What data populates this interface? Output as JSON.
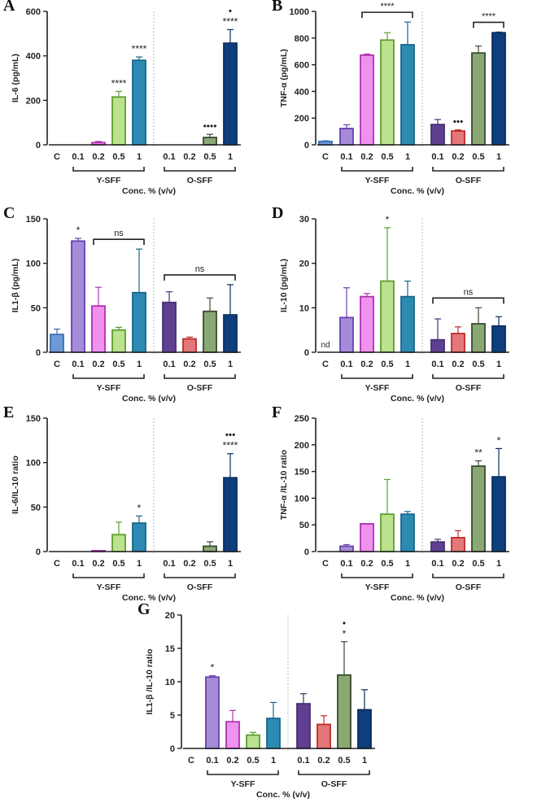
{
  "colors": {
    "C": {
      "fill": "#6e9ad6",
      "stroke": "#3d6db5"
    },
    "Y0.1": {
      "fill": "#a58cd8",
      "stroke": "#6a3fb0"
    },
    "Y0.2": {
      "fill": "#ee92ee",
      "stroke": "#b030b0"
    },
    "Y0.5": {
      "fill": "#bce28e",
      "stroke": "#5e9e2e"
    },
    "Y1": {
      "fill": "#2b8bb2",
      "stroke": "#1b6688"
    },
    "O0.1": {
      "fill": "#5f3f90",
      "stroke": "#4a2f75"
    },
    "O0.2": {
      "fill": "#e47878",
      "stroke": "#c02a2a"
    },
    "O0.5": {
      "fill": "#8aa874",
      "stroke": "#3a4a2e"
    },
    "O1": {
      "fill": "#0e3e7c",
      "stroke": "#0a2e5e"
    }
  },
  "chart_data": [
    {
      "panel": "A",
      "type": "bar",
      "ylabel": "IL-6 (pg/mL)",
      "xlabel": "Conc. % (v/v)",
      "ylim": [
        0,
        600
      ],
      "yticks": [
        0,
        200,
        400,
        600
      ],
      "categories": [
        "C",
        "0.1",
        "0.2",
        "0.5",
        "1",
        "0.1",
        "0.2",
        "0.5",
        "1"
      ],
      "groups": [
        "Y-SFF",
        "O-SFF"
      ],
      "values": [
        0,
        0,
        10,
        215,
        380,
        0,
        0,
        33,
        457
      ],
      "errors": [
        0,
        0,
        5,
        25,
        15,
        0,
        0,
        14,
        61
      ],
      "annotations": [
        [
          "",
          "",
          "",
          "****",
          "****",
          "",
          "",
          "••••",
          "****"
        ],
        [
          "",
          "",
          "",
          "",
          "",
          "",
          "",
          "",
          "•"
        ]
      ],
      "brackets": []
    },
    {
      "panel": "B",
      "type": "bar",
      "ylabel": "TNF-α (pg/mL)",
      "xlabel": "Conc. % (v/v)",
      "ylim": [
        0,
        1000
      ],
      "yticks": [
        0,
        200,
        400,
        600,
        800,
        1000
      ],
      "categories": [
        "C",
        "0.1",
        "0.2",
        "0.5",
        "1",
        "0.1",
        "0.2",
        "0.5",
        "1"
      ],
      "groups": [
        "Y-SFF",
        "O-SFF"
      ],
      "values": [
        25,
        122,
        672,
        785,
        750,
        152,
        103,
        688,
        840
      ],
      "errors": [
        5,
        28,
        8,
        55,
        170,
        38,
        9,
        52,
        5
      ],
      "annotations": [
        [
          "",
          "",
          "",
          "",
          "",
          "",
          "•••",
          "",
          ""
        ]
      ],
      "brackets": [
        {
          "from": 2,
          "to": 4,
          "label": "****"
        },
        {
          "from": 7,
          "to": 8,
          "label": "****"
        }
      ]
    },
    {
      "panel": "C",
      "type": "bar",
      "ylabel": "IL1-β (pg/mL)",
      "xlabel": "Conc. % (v/v)",
      "ylim": [
        0,
        150
      ],
      "yticks": [
        0,
        50,
        100,
        150
      ],
      "categories": [
        "C",
        "0.1",
        "0.2",
        "0.5",
        "1",
        "0.1",
        "0.2",
        "0.5",
        "1"
      ],
      "groups": [
        "Y-SFF",
        "O-SFF"
      ],
      "values": [
        20,
        125,
        52,
        25,
        67,
        56,
        15,
        46,
        42
      ],
      "errors": [
        6,
        3,
        21,
        3,
        49,
        12,
        2,
        15,
        34
      ],
      "annotations": [
        [
          "",
          "*",
          "",
          "",
          "",
          "",
          "",
          "",
          ""
        ]
      ],
      "brackets": [
        {
          "from": 2,
          "to": 4,
          "label": "ns"
        },
        {
          "from": 5,
          "to": 8,
          "label": "ns"
        }
      ]
    },
    {
      "panel": "D",
      "type": "bar",
      "ylabel": "IL-10 (pg/mL)",
      "xlabel": "Conc. % (v/v)",
      "ylim": [
        0,
        30
      ],
      "yticks": [
        0,
        10,
        20,
        30
      ],
      "categories": [
        "C",
        "0.1",
        "0.2",
        "0.5",
        "1",
        "0.1",
        "0.2",
        "0.5",
        "1"
      ],
      "groups": [
        "Y-SFF",
        "O-SFF"
      ],
      "values": [
        0,
        7.8,
        12.5,
        16,
        12.5,
        2.8,
        4.2,
        6.4,
        5.9
      ],
      "errors": [
        0,
        6.7,
        0.7,
        12,
        3.5,
        4.7,
        1.5,
        3.6,
        2.1
      ],
      "annotations": [
        [
          "nd",
          "",
          "",
          "*",
          "",
          "",
          "",
          "",
          ""
        ]
      ],
      "brackets": [
        {
          "from": 5,
          "to": 8,
          "label": "ns"
        }
      ]
    },
    {
      "panel": "E",
      "type": "bar",
      "ylabel": "IL-6/IL-10 ratio",
      "xlabel": "Conc. % (v/v)",
      "ylim": [
        0,
        150
      ],
      "yticks": [
        0,
        50,
        100,
        150
      ],
      "categories": [
        "C",
        "0.1",
        "0.2",
        "0.5",
        "1",
        "0.1",
        "0.2",
        "0.5",
        "1"
      ],
      "groups": [
        "Y-SFF",
        "O-SFF"
      ],
      "values": [
        0,
        0,
        1,
        19,
        32,
        0,
        0,
        6,
        83
      ],
      "errors": [
        0,
        0,
        0,
        14,
        8,
        0,
        0,
        5,
        27
      ],
      "annotations": [
        [
          "",
          "",
          "",
          "",
          "*",
          "",
          "",
          "",
          "****"
        ],
        [
          "",
          "",
          "",
          "",
          "",
          "",
          "",
          "",
          "•••"
        ]
      ],
      "brackets": []
    },
    {
      "panel": "F",
      "type": "bar",
      "ylabel": "TNF-α /IL-10 ratio",
      "xlabel": "Conc. % (v/v)",
      "ylim": [
        0,
        250
      ],
      "yticks": [
        0,
        50,
        100,
        150,
        200,
        250
      ],
      "categories": [
        "C",
        "0.1",
        "0.2",
        "0.5",
        "1",
        "0.1",
        "0.2",
        "0.5",
        "1"
      ],
      "groups": [
        "Y-SFF",
        "O-SFF"
      ],
      "values": [
        0,
        10,
        52,
        70,
        70,
        18,
        26,
        160,
        140
      ],
      "errors": [
        0,
        3,
        0,
        65,
        5,
        5,
        13,
        10,
        53
      ],
      "annotations": [
        [
          "",
          "",
          "",
          "",
          "",
          "",
          "",
          "**",
          "*"
        ]
      ],
      "brackets": []
    },
    {
      "panel": "G",
      "type": "bar",
      "ylabel": "IL1-β /IL-10 ratio",
      "xlabel": "Conc. % (v/v)",
      "ylim": [
        0,
        20
      ],
      "yticks": [
        0,
        5,
        10,
        15,
        20
      ],
      "categories": [
        "C",
        "0.1",
        "0.2",
        "0.5",
        "1",
        "0.1",
        "0.2",
        "0.5",
        "1"
      ],
      "groups": [
        "Y-SFF",
        "O-SFF"
      ],
      "values": [
        0,
        10.7,
        4,
        2,
        4.5,
        6.7,
        3.6,
        11,
        5.8
      ],
      "errors": [
        0,
        0.2,
        1.7,
        0.4,
        2.4,
        1.5,
        1.3,
        5,
        3
      ],
      "annotations": [
        [
          "",
          "*",
          "",
          "",
          "",
          "",
          "",
          "*",
          ""
        ],
        [
          "",
          "",
          "",
          "",
          "",
          "",
          "",
          "•",
          ""
        ]
      ],
      "brackets": []
    }
  ]
}
